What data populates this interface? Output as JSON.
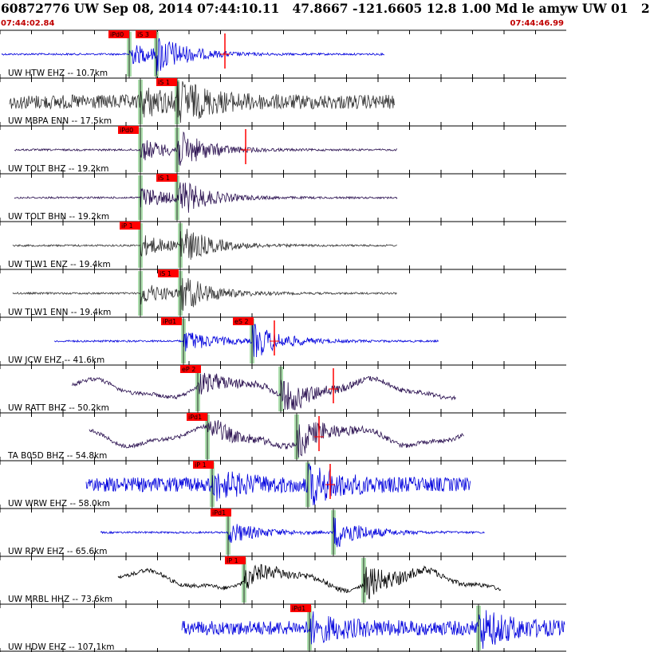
{
  "header": {
    "title": "60872776 UW Sep 08, 2014 07:44:10.11   47.8667 -121.6605 12.8 1.00 Md le amyw UW 01   2",
    "start_time": "07:44:02.84",
    "end_time": "07:44:46.99"
  },
  "colors": {
    "pick_flag": "#ff0000",
    "ticks": "#000000",
    "pick_shade": "#9fd9a0",
    "blue_trace": "#0000dd",
    "dark_trace": "#333333",
    "purple_trace": "#2a1050"
  },
  "tracks": [
    {
      "label": "UW HTW EHZ -- 10.7km",
      "color": "#0000dd",
      "style": "quiet",
      "picks": [
        {
          "text": "iPd0"
        },
        {
          "text": "iS 3"
        }
      ]
    },
    {
      "label": "UW MBPA ENN -- 17.5km",
      "color": "#333333",
      "style": "noisy",
      "picks": [
        {
          "text": "iS 1"
        }
      ]
    },
    {
      "label": "UW TOLT BHZ -- 19.2km",
      "color": "#2a1050",
      "style": "quiet",
      "picks": [
        {
          "text": "iPd0"
        }
      ]
    },
    {
      "label": "UW TOLT BHN -- 19.2km",
      "color": "#2a1050",
      "style": "quiet",
      "picks": [
        {
          "text": "iS 1"
        }
      ]
    },
    {
      "label": "UW TLW1 ENZ -- 19.4km",
      "color": "#333333",
      "style": "quiet",
      "picks": [
        {
          "text": "iP 1"
        }
      ]
    },
    {
      "label": "UW TLW1 ENN -- 19.4km",
      "color": "#333333",
      "style": "quiet",
      "picks": [
        {
          "text": "iS 1"
        }
      ]
    },
    {
      "label": "UW JCW EHZ -- 41.6km",
      "color": "#0000dd",
      "style": "quiet",
      "picks": [
        {
          "text": "iPd1"
        },
        {
          "text": "eS 2"
        }
      ]
    },
    {
      "label": "UW RATT BHZ -- 50.2km",
      "color": "#2a1050",
      "style": "wave",
      "picks": [
        {
          "text": "eP 2"
        }
      ]
    },
    {
      "label": "TA B05D BHZ -- 54.8km",
      "color": "#2a1050",
      "style": "wave",
      "picks": [
        {
          "text": "iPd1"
        }
      ]
    },
    {
      "label": "UW WRW EHZ -- 58.0km",
      "color": "#0000dd",
      "style": "noisy",
      "picks": [
        {
          "text": "iP 1"
        }
      ]
    },
    {
      "label": "UW RPW EHZ -- 65.6km",
      "color": "#0000dd",
      "style": "quiet",
      "picks": [
        {
          "text": "iPd1"
        }
      ]
    },
    {
      "label": "UW MRBL HHZ -- 73.6km",
      "color": "#000000",
      "style": "wave",
      "picks": [
        {
          "text": "iP 1"
        }
      ]
    },
    {
      "label": "UW HDW EHZ -- 107.1km",
      "color": "#0000dd",
      "style": "noisy",
      "picks": [
        {
          "text": "iPd1"
        }
      ]
    }
  ]
}
